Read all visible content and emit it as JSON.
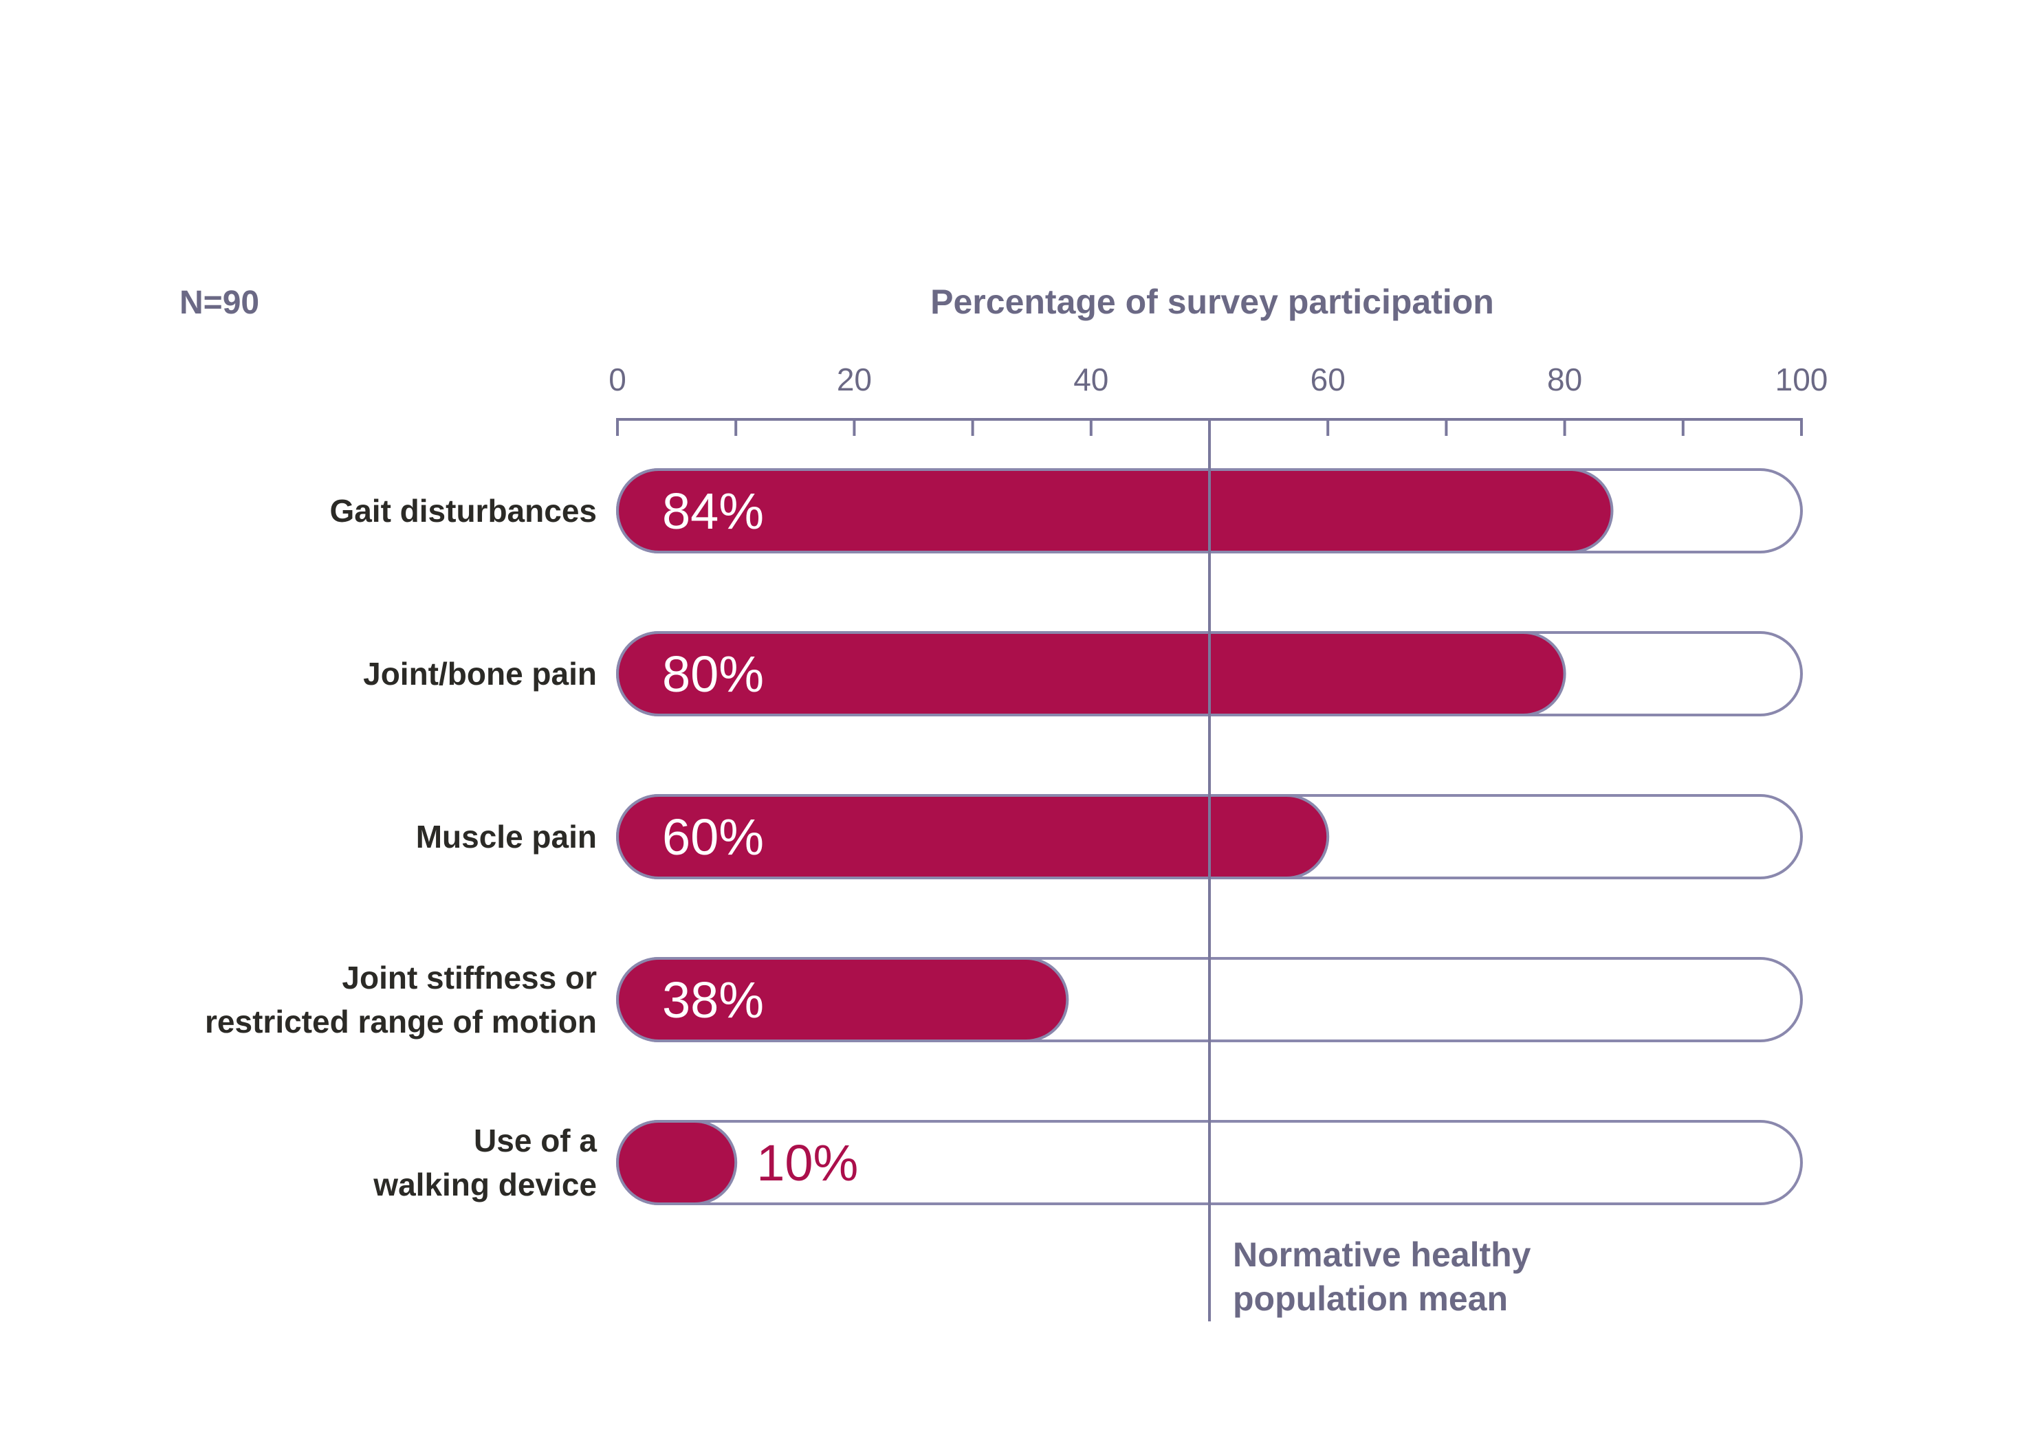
{
  "chart_data": {
    "type": "bar",
    "orientation": "horizontal",
    "title": "Percentage of survey participation",
    "sample_size_label": "N=90",
    "xlim": [
      0,
      100
    ],
    "x_ticks": [
      0,
      20,
      40,
      60,
      80,
      100
    ],
    "x_tick_labels": [
      "0",
      "20",
      "40",
      "60",
      "80",
      "100"
    ],
    "x_minor_ticks": [
      10,
      30,
      50,
      70,
      90
    ],
    "categories": [
      [
        "Gait disturbances"
      ],
      [
        "Joint/bone pain"
      ],
      [
        "Muscle pain"
      ],
      [
        "Joint stiffness or",
        "restricted range of motion"
      ],
      [
        "Use of a",
        "walking device"
      ]
    ],
    "values": [
      84,
      80,
      60,
      38,
      10
    ],
    "value_labels": [
      "84%",
      "80%",
      "60%",
      "38%",
      "10%"
    ],
    "reference_line": {
      "value": 50,
      "label_lines": [
        "Normative healthy",
        "population mean"
      ]
    },
    "grid": false,
    "legend": "none",
    "colors": {
      "bar_fill": "#ab0f4b",
      "bar_outline": "#8a88ad",
      "axis": "#7a789c",
      "title_text": "#6b6985",
      "category_text": "#2b2a26",
      "value_text_inside": "#ffffff",
      "value_text_outside": "#ab0f4b"
    }
  }
}
